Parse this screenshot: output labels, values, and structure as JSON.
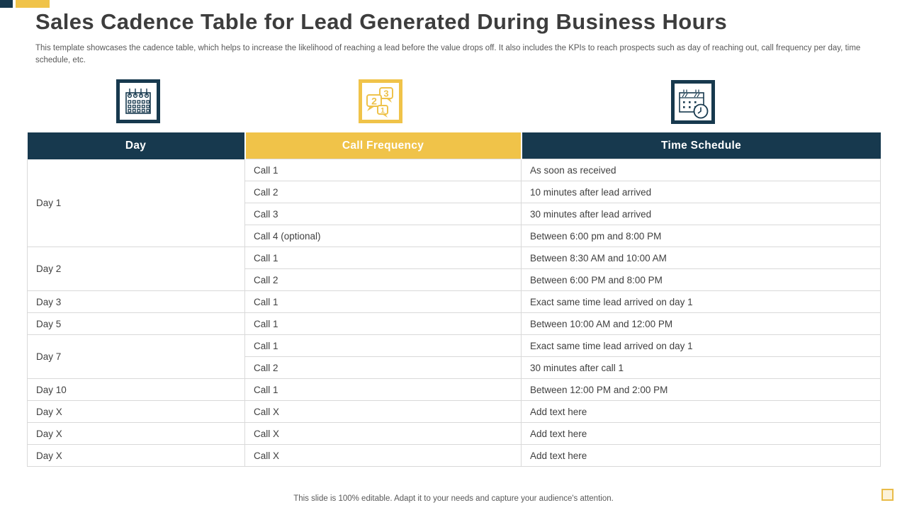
{
  "slide": {
    "title": "Sales Cadence Table for Lead Generated During Business Hours",
    "subtitle": "This template showcases the cadence table, which helps to increase the likelihood of reaching a lead before the value drops off. It also includes the KPIs to reach prospects such as day of reaching out, call frequency per day, time schedule, etc.",
    "footer": "This slide is 100% editable. Adapt it to your needs and capture your audience's attention."
  },
  "colors": {
    "teal": "#17394E",
    "yellow": "#F0C349",
    "title_text": "#3D3D3D",
    "body_text": "#404040",
    "muted_text": "#595959",
    "grid_line": "#D9D9D9"
  },
  "icons": [
    {
      "name": "calendar-grid-icon",
      "frame_color": "#17394E"
    },
    {
      "name": "call-frequency-bubbles-icon",
      "frame_color": "#F0C349",
      "bubble_numbers": [
        "1",
        "2",
        "3"
      ]
    },
    {
      "name": "calendar-clock-icon",
      "frame_color": "#17394E"
    }
  ],
  "table": {
    "headers": [
      "Day",
      "Call Frequency",
      "Time Schedule"
    ],
    "header_colors": [
      "#17394E",
      "#F0C349",
      "#17394E"
    ],
    "groups": [
      {
        "day": "Day 1",
        "rows": [
          [
            "Call 1",
            "As soon as received"
          ],
          [
            "Call 2",
            "10 minutes after lead arrived"
          ],
          [
            "Call 3",
            "30 minutes after lead arrived"
          ],
          [
            "Call 4 (optional)",
            "Between 6:00 pm and 8:00 PM"
          ]
        ]
      },
      {
        "day": "Day 2",
        "rows": [
          [
            "Call 1",
            "Between 8:30 AM and 10:00 AM"
          ],
          [
            "Call 2",
            "Between 6:00 PM and 8:00 PM"
          ]
        ]
      },
      {
        "day": "Day 3",
        "rows": [
          [
            "Call 1",
            "Exact same time lead arrived on day 1"
          ]
        ]
      },
      {
        "day": "Day 5",
        "rows": [
          [
            "Call 1",
            "Between 10:00 AM and 12:00 PM"
          ]
        ]
      },
      {
        "day": "Day 7",
        "rows": [
          [
            "Call 1",
            "Exact same time lead arrived on day 1"
          ],
          [
            "Call 2",
            "30 minutes after call 1"
          ]
        ]
      },
      {
        "day": "Day 10",
        "rows": [
          [
            "Call 1",
            "Between 12:00 PM and 2:00 PM"
          ]
        ]
      },
      {
        "day": "Day X",
        "rows": [
          [
            "Call X",
            "Add text here"
          ]
        ]
      },
      {
        "day": "Day X",
        "rows": [
          [
            "Call X",
            "Add text here"
          ]
        ]
      },
      {
        "day": "Day X",
        "rows": [
          [
            "Call X",
            "Add text here"
          ]
        ]
      }
    ]
  }
}
